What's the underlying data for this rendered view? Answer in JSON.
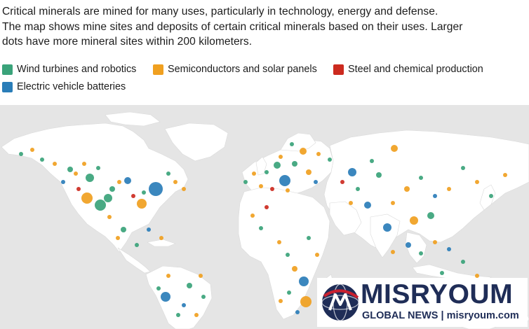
{
  "description": {
    "line1": "Critical minerals are mined for many uses, particularly in technology, energy and defense.",
    "line2": "The map shows mine sites and deposits of certain critical minerals based on their uses. Larger",
    "line3": "dots have more mineral sites within 200 kilometers."
  },
  "legend": [
    {
      "label": "Wind turbines and robotics",
      "color": "#3aa37a"
    },
    {
      "label": "Semiconductors and solar panels",
      "color": "#f0a020"
    },
    {
      "label": "Steel and chemical production",
      "color": "#cc2a1f"
    },
    {
      "label": "Electric vehicle batteries",
      "color": "#2a7db8"
    }
  ],
  "map": {
    "land_color": "#ffffff",
    "water_color": "#e5e5e5",
    "sites": [
      {
        "use": "batteries",
        "size": "large"
      },
      {
        "use": "wind",
        "size": "large"
      },
      {
        "use": "semiconductors",
        "size": "large"
      }
    ]
  },
  "watermark": {
    "name": "MISRYOUM",
    "subtitle": "GLOBAL NEWS | misryoum.com",
    "colors": {
      "navy": "#1f2d57",
      "red": "#c8202f"
    }
  }
}
